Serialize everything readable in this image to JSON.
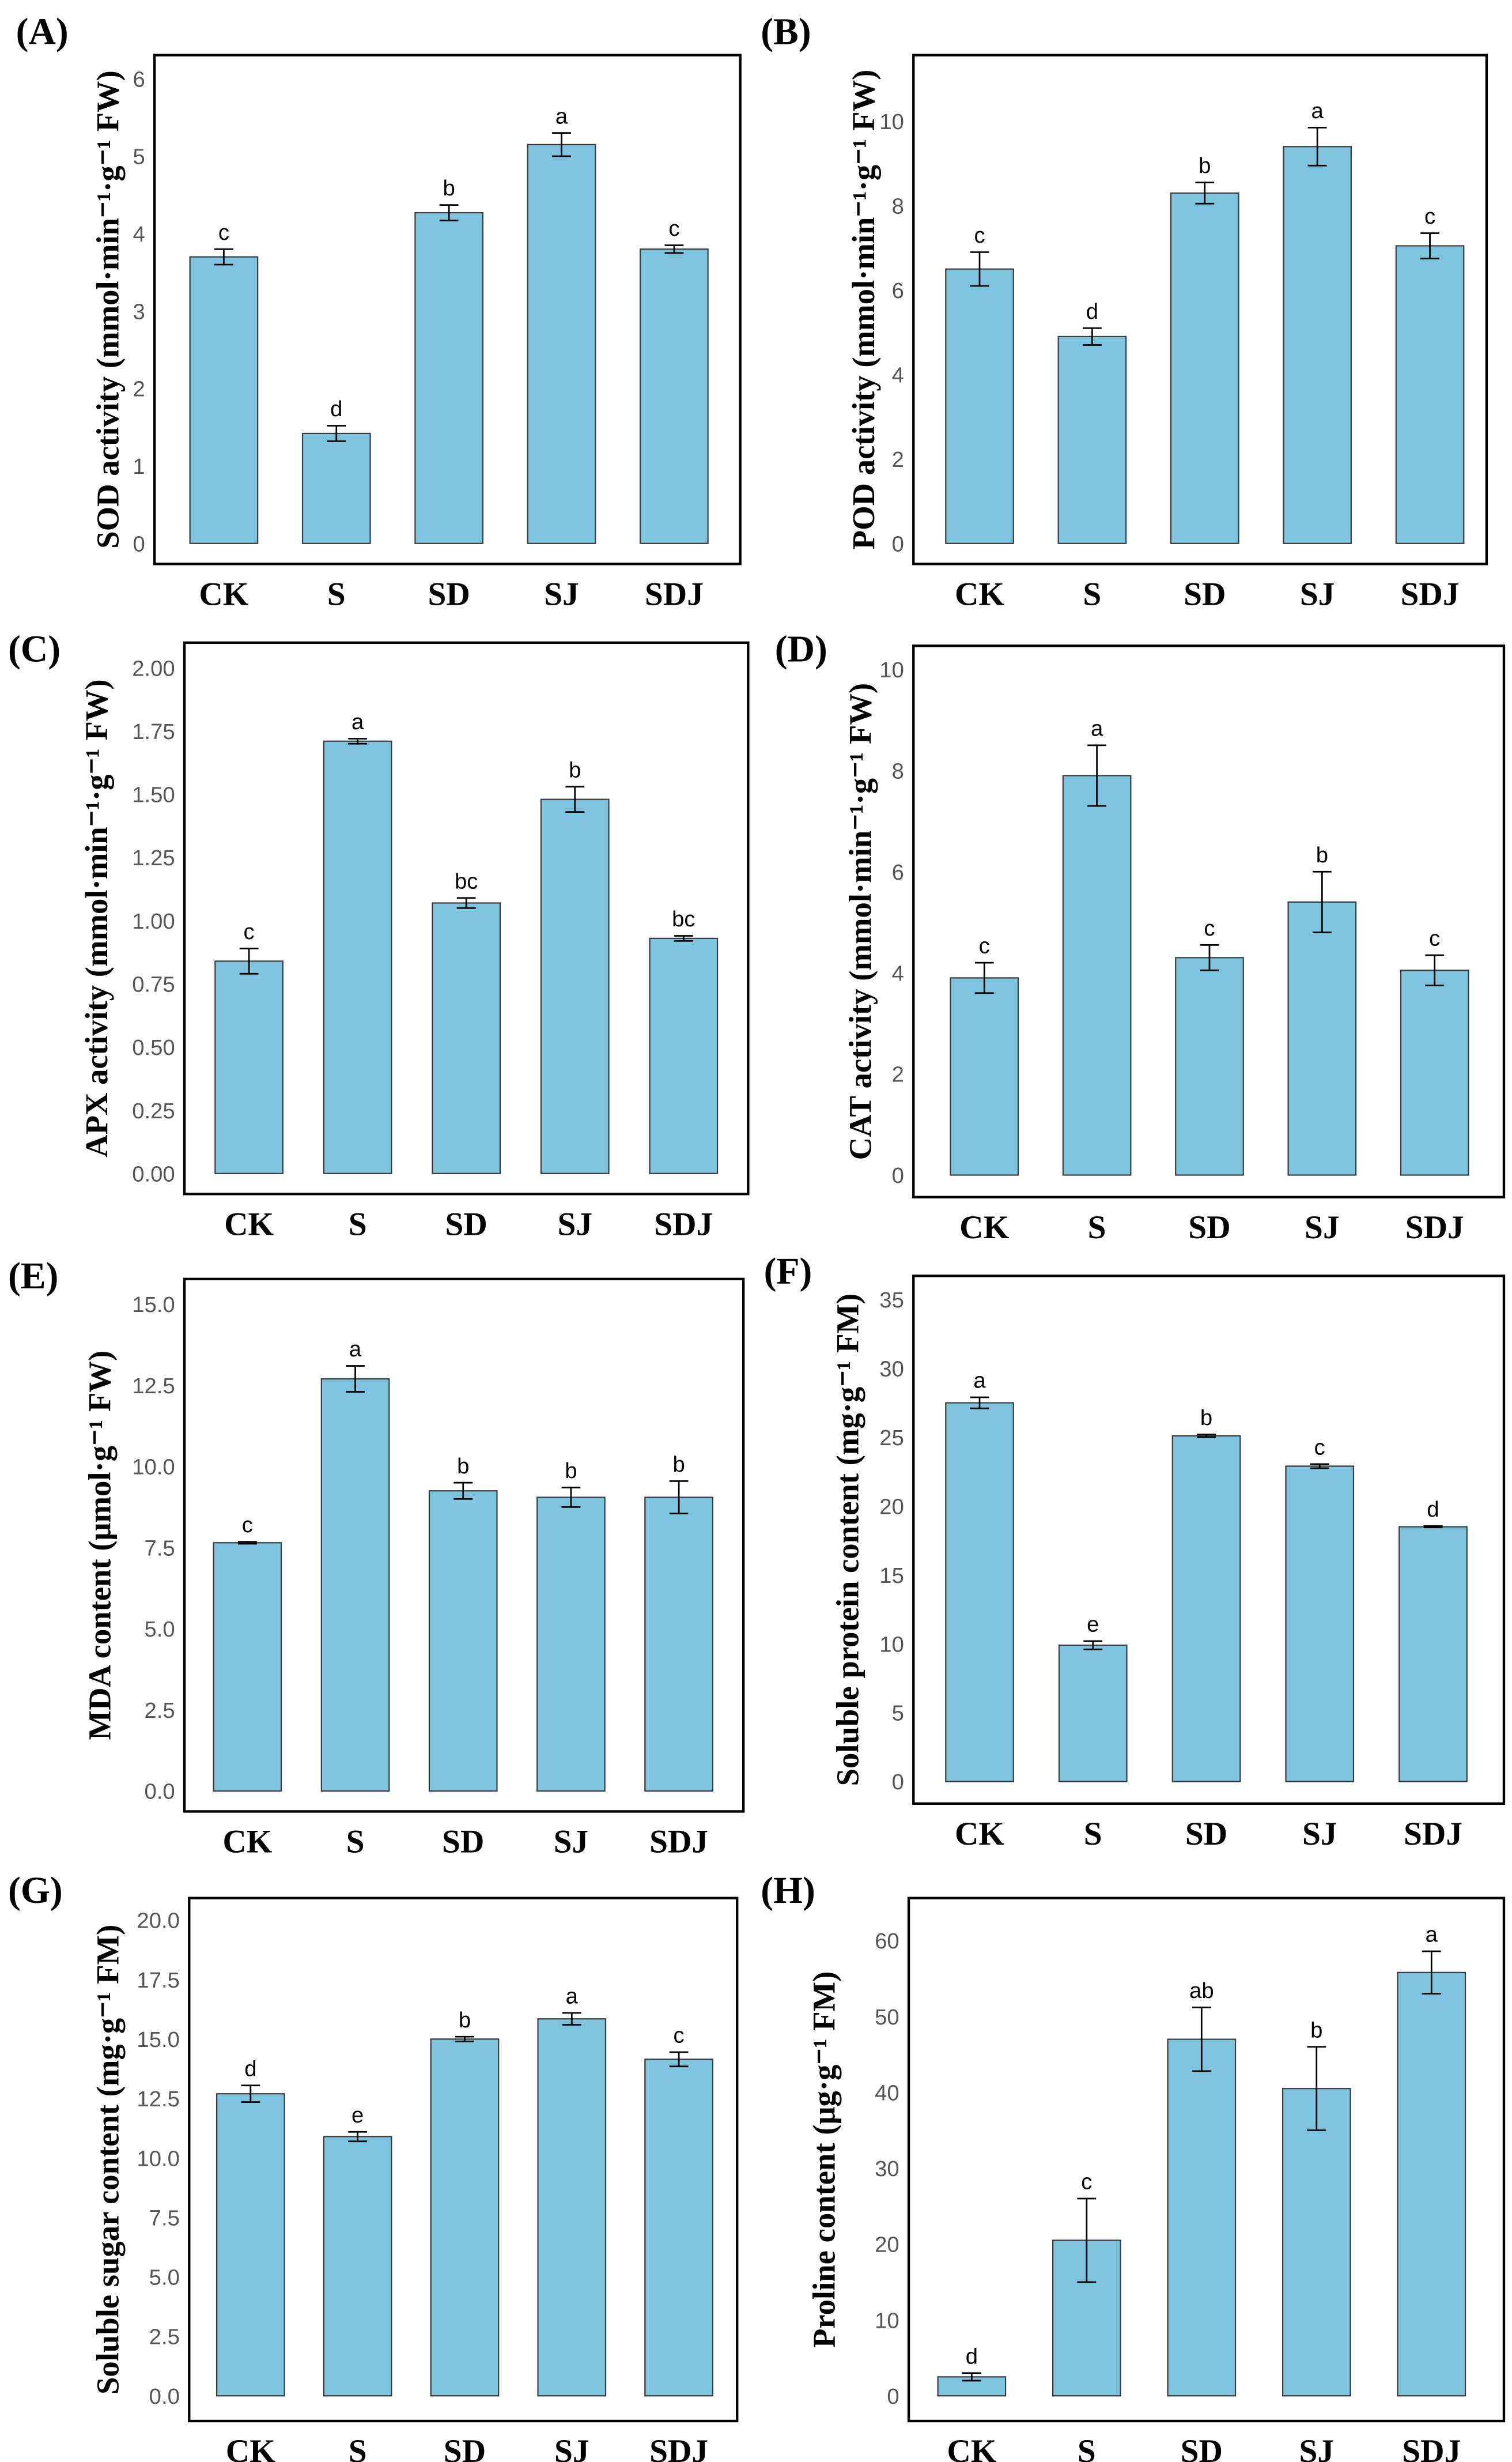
{
  "colors": {
    "bar": "#7ec4de",
    "bar_edge": "#3a3a3a",
    "frame": "#000000",
    "error": "#000000"
  },
  "chart_data": [
    {
      "type": "bar",
      "panel": "(A)",
      "ylabel": "SOD activity (mmol·min⁻¹·g⁻¹ FW)",
      "categories": [
        "CK",
        "S",
        "SD",
        "SJ",
        "SDJ"
      ],
      "values": [
        3.7,
        1.42,
        4.27,
        5.15,
        3.8
      ],
      "errors": [
        0.1,
        0.1,
        0.1,
        0.15,
        0.05
      ],
      "letters": [
        "c",
        "d",
        "b",
        "a",
        "c"
      ],
      "ylim": [
        0,
        6
      ],
      "yticks": [
        "0",
        "1",
        "2",
        "3",
        "4",
        "5",
        "6"
      ],
      "grid": false
    },
    {
      "type": "bar",
      "panel": "(B)",
      "ylabel": "POD activity (mmol·min⁻¹·g⁻¹ FW)",
      "categories": [
        "CK",
        "S",
        "SD",
        "SJ",
        "SDJ"
      ],
      "values": [
        6.5,
        4.9,
        8.3,
        9.4,
        7.05
      ],
      "errors": [
        0.4,
        0.2,
        0.25,
        0.45,
        0.3
      ],
      "letters": [
        "c",
        "d",
        "b",
        "a",
        "c"
      ],
      "ylim": [
        0,
        10
      ],
      "yticks": [
        "0",
        "2",
        "4",
        "6",
        "8",
        "10"
      ],
      "grid": false
    },
    {
      "type": "bar",
      "panel": "(C)",
      "ylabel": "APX activity (mmol·min⁻¹·g⁻¹ FW)",
      "categories": [
        "CK",
        "S",
        "SD",
        "SJ",
        "SDJ"
      ],
      "values": [
        0.84,
        1.71,
        1.07,
        1.48,
        0.93
      ],
      "errors": [
        0.05,
        0.01,
        0.02,
        0.05,
        0.01
      ],
      "letters": [
        "c",
        "a",
        "bc",
        "b",
        "bc"
      ],
      "ylim": [
        0,
        2
      ],
      "yticks": [
        "0.00",
        "0.25",
        "0.50",
        "0.75",
        "1.00",
        "1.25",
        "1.50",
        "1.75",
        "2.00"
      ],
      "grid": false
    },
    {
      "type": "bar",
      "panel": "(D)",
      "ylabel": "CAT activity (mmol·min⁻¹·g⁻¹ FW)",
      "categories": [
        "CK",
        "S",
        "SD",
        "SJ",
        "SDJ"
      ],
      "values": [
        3.9,
        7.9,
        4.3,
        5.4,
        4.05
      ],
      "errors": [
        0.3,
        0.6,
        0.25,
        0.6,
        0.3
      ],
      "letters": [
        "c",
        "a",
        "c",
        "b",
        "c"
      ],
      "ylim": [
        0,
        10
      ],
      "yticks": [
        "0",
        "2",
        "4",
        "6",
        "8",
        "10"
      ],
      "grid": false
    },
    {
      "type": "bar",
      "panel": "(E)",
      "ylabel": "MDA content  (μmol·g⁻¹ FW)",
      "categories": [
        "CK",
        "S",
        "SD",
        "SJ",
        "SDJ"
      ],
      "values": [
        7.65,
        12.7,
        9.25,
        9.05,
        9.05
      ],
      "errors": [
        0.03,
        0.4,
        0.25,
        0.3,
        0.5
      ],
      "letters": [
        "c",
        "a",
        "b",
        "b",
        "b"
      ],
      "ylim": [
        0,
        15
      ],
      "yticks": [
        "0.0",
        "2.5",
        "5.0",
        "7.5",
        "10.0",
        "12.5",
        "15.0"
      ],
      "grid": false
    },
    {
      "type": "bar",
      "panel": "(F)",
      "ylabel": "Soluble protein content (mg·g⁻¹ FM)",
      "categories": [
        "CK",
        "S",
        "SD",
        "SJ",
        "SDJ"
      ],
      "values": [
        27.5,
        9.9,
        25.1,
        22.9,
        18.5
      ],
      "errors": [
        0.4,
        0.3,
        0.1,
        0.15,
        0.05
      ],
      "letters": [
        "a",
        "e",
        "b",
        "c",
        "d"
      ],
      "ylim": [
        0,
        35
      ],
      "yticks": [
        "0",
        "5",
        "10",
        "15",
        "20",
        "25",
        "30",
        "35"
      ],
      "grid": false
    },
    {
      "type": "bar",
      "panel": "(G)",
      "ylabel": "Soluble sugar content (mg·g⁻¹ FM)",
      "categories": [
        "CK",
        "S",
        "SD",
        "SJ",
        "SDJ"
      ],
      "values": [
        12.7,
        10.9,
        15.0,
        15.85,
        14.15
      ],
      "errors": [
        0.35,
        0.2,
        0.1,
        0.25,
        0.3
      ],
      "letters": [
        "d",
        "e",
        "b",
        "a",
        "c"
      ],
      "ylim": [
        0,
        20
      ],
      "yticks": [
        "0.0",
        "2.5",
        "5.0",
        "7.5",
        "10.0",
        "12.5",
        "15.0",
        "17.5",
        "20.0"
      ],
      "grid": false
    },
    {
      "type": "bar",
      "panel": "(H)",
      "ylabel": "Proline content (μg·g⁻¹ FM)",
      "categories": [
        "CK",
        "S",
        "SD",
        "SJ",
        "SDJ"
      ],
      "values": [
        2.5,
        20.5,
        47,
        40.5,
        55.8
      ],
      "errors": [
        0.5,
        5.5,
        4.2,
        5.5,
        2.8
      ],
      "letters": [
        "d",
        "c",
        "ab",
        "b",
        "a"
      ],
      "ylim": [
        0,
        60
      ],
      "yticks": [
        "0",
        "10",
        "20",
        "30",
        "40",
        "50",
        "60"
      ],
      "grid": false
    }
  ]
}
